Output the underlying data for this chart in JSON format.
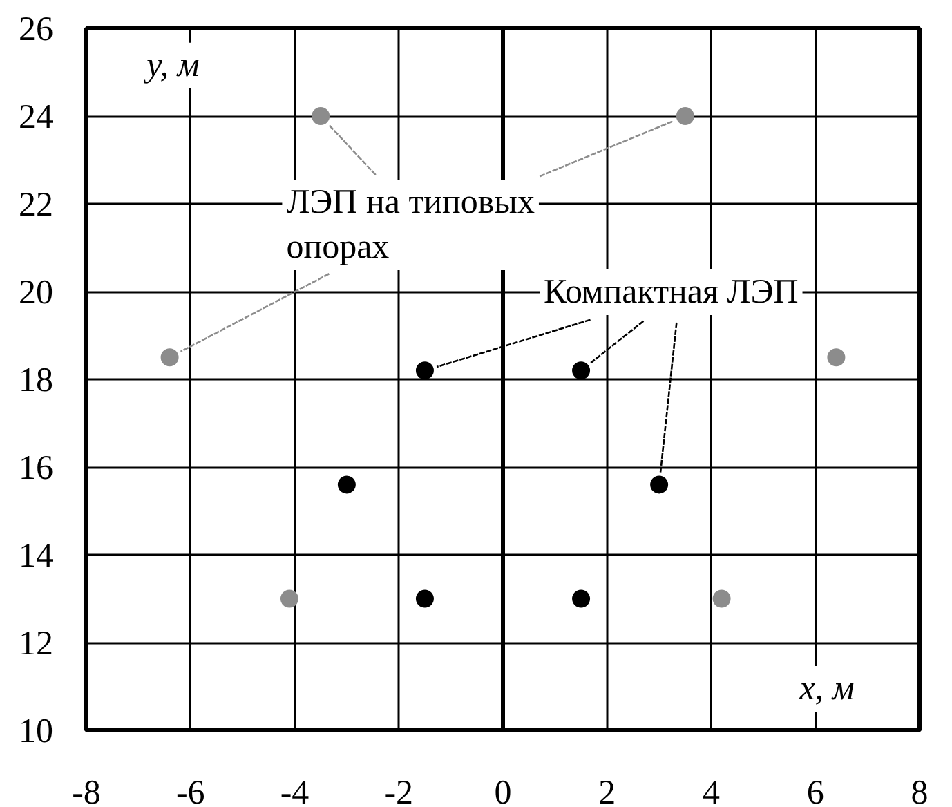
{
  "chart_data": {
    "type": "scatter",
    "xlabel": "x, м",
    "ylabel": "y, м",
    "xlim": [
      -8,
      8
    ],
    "ylim": [
      10,
      26
    ],
    "xticks": [
      -8,
      -6,
      -4,
      -2,
      0,
      2,
      4,
      6,
      8
    ],
    "yticks": [
      10,
      12,
      14,
      16,
      18,
      20,
      22,
      24,
      26
    ],
    "grid": true,
    "marker": "circle",
    "ref_lines": [
      {
        "axis": "x",
        "value": 0,
        "color": "#000000"
      }
    ],
    "series": [
      {
        "name": "ЛЭП на типовых опорах",
        "color": "#8c8c8c",
        "x": [
          -3.5,
          3.5,
          -6.4,
          6.4,
          -4.1,
          4.2
        ],
        "values": [
          24,
          24,
          18.5,
          18.5,
          13,
          13
        ]
      },
      {
        "name": "Компактная ЛЭП",
        "color": "#000000",
        "x": [
          -1.5,
          1.5,
          -3.0,
          3.0,
          -1.5,
          1.5
        ],
        "values": [
          18.2,
          18.2,
          15.6,
          15.6,
          13,
          13
        ]
      }
    ]
  }
}
